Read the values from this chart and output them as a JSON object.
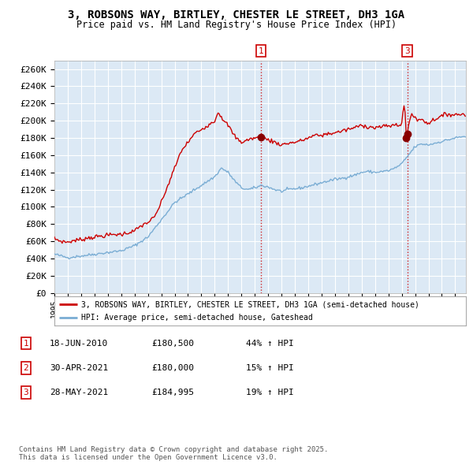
{
  "title": "3, ROBSONS WAY, BIRTLEY, CHESTER LE STREET, DH3 1GA",
  "subtitle": "Price paid vs. HM Land Registry's House Price Index (HPI)",
  "red_line_label": "3, ROBSONS WAY, BIRTLEY, CHESTER LE STREET, DH3 1GA (semi-detached house)",
  "blue_line_label": "HPI: Average price, semi-detached house, Gateshead",
  "yticks": [
    0,
    20000,
    40000,
    60000,
    80000,
    100000,
    120000,
    140000,
    160000,
    180000,
    200000,
    220000,
    240000,
    260000
  ],
  "ytick_labels": [
    "£0",
    "£20K",
    "£40K",
    "£60K",
    "£80K",
    "£100K",
    "£120K",
    "£140K",
    "£160K",
    "£180K",
    "£200K",
    "£220K",
    "£240K",
    "£260K"
  ],
  "ylim": [
    0,
    270000
  ],
  "xlim_start": 1995.0,
  "xlim_end": 2025.8,
  "xtick_years": [
    1995,
    1996,
    1997,
    1998,
    1999,
    2000,
    2001,
    2002,
    2003,
    2004,
    2005,
    2006,
    2007,
    2008,
    2009,
    2010,
    2011,
    2012,
    2013,
    2014,
    2015,
    2016,
    2017,
    2018,
    2019,
    2020,
    2021,
    2022,
    2023,
    2024,
    2025
  ],
  "background_color": "#dce9f5",
  "grid_color": "#ffffff",
  "red_color": "#cc0000",
  "blue_color": "#7aadd4",
  "dot_color": "#880000",
  "sale1_date": 2010.46,
  "sale1_price": 180500,
  "sale2_date": 2021.33,
  "sale2_price": 180000,
  "sale3_date": 2021.41,
  "sale3_price": 184995,
  "table_entries": [
    {
      "num": "1",
      "date": "18-JUN-2010",
      "price": "£180,500",
      "change": "44% ↑ HPI"
    },
    {
      "num": "2",
      "date": "30-APR-2021",
      "price": "£180,000",
      "change": "15% ↑ HPI"
    },
    {
      "num": "3",
      "date": "28-MAY-2021",
      "price": "£184,995",
      "change": "19% ↑ HPI"
    }
  ],
  "footnote": "Contains HM Land Registry data © Crown copyright and database right 2025.\nThis data is licensed under the Open Government Licence v3.0.",
  "plot_bg": "#dce9f5"
}
